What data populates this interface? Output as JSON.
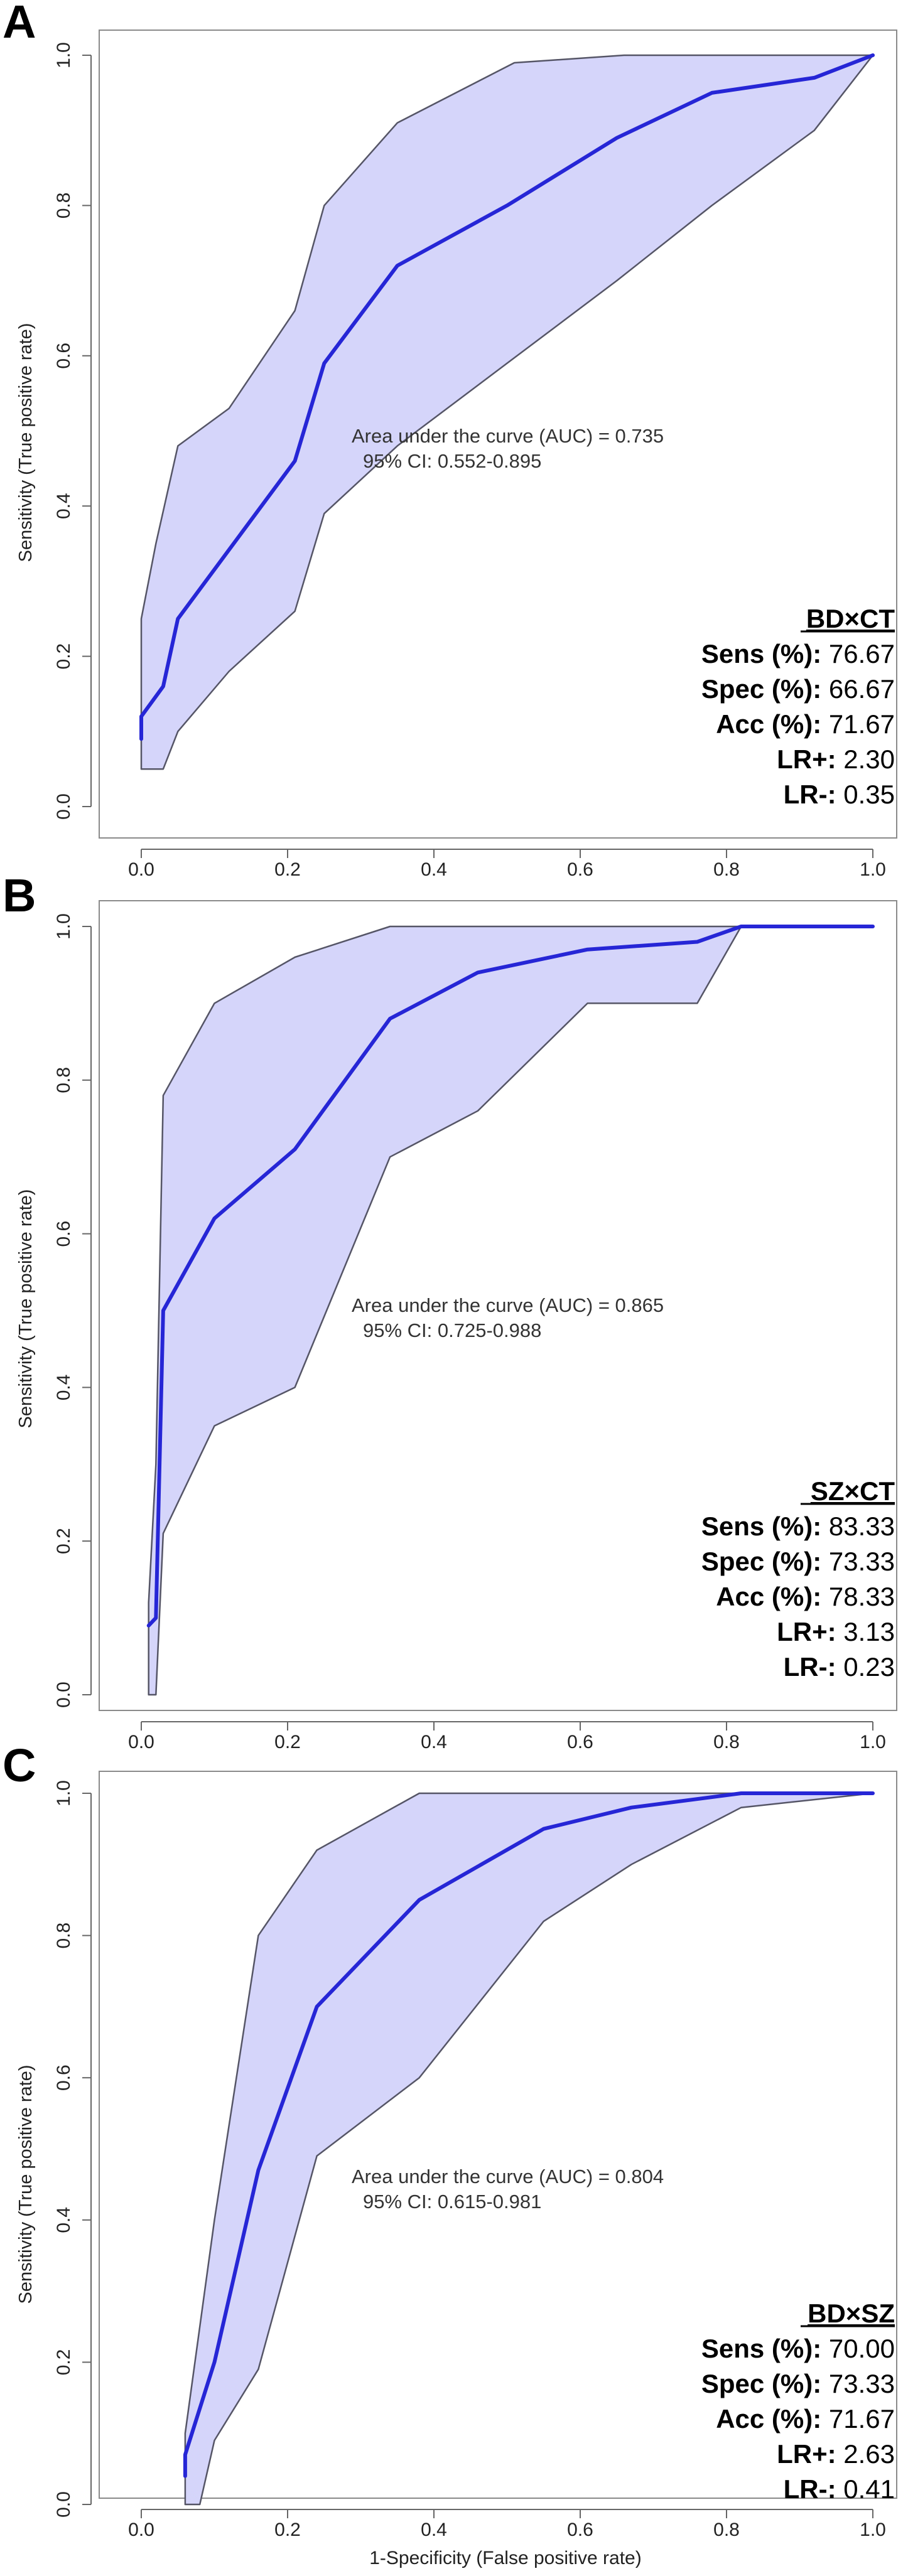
{
  "chart_data": [
    {
      "type": "line",
      "panel_label": "A",
      "ylabel": "Sensitivity (True positive rate)",
      "xlabel": "",
      "xlim": [
        0,
        1
      ],
      "ylim": [
        0,
        1
      ],
      "x_ticks": [
        "0.0",
        "0.2",
        "0.4",
        "0.6",
        "0.8",
        "1.0"
      ],
      "y_ticks": [
        "0.0",
        "0.2",
        "0.4",
        "0.6",
        "0.8",
        "1.0"
      ],
      "auc_text": "Area under the curve (AUC) = 0.735",
      "ci_text": "95% CI: 0.552-0.895",
      "roc_curve": {
        "name": "ROC",
        "x": [
          0.0,
          0.0,
          0.03,
          0.05,
          0.21,
          0.25,
          0.35,
          0.5,
          0.65,
          0.78,
          0.92,
          1.0
        ],
        "y": [
          0.09,
          0.12,
          0.16,
          0.25,
          0.46,
          0.59,
          0.72,
          0.8,
          0.89,
          0.95,
          0.97,
          1.0
        ]
      },
      "ci_upper": {
        "x": [
          0.0,
          0.0,
          0.02,
          0.05,
          0.12,
          0.21,
          0.25,
          0.35,
          0.51,
          0.66,
          1.0
        ],
        "y": [
          0.1,
          0.25,
          0.35,
          0.48,
          0.53,
          0.66,
          0.8,
          0.91,
          0.99,
          1.0,
          1.0
        ]
      },
      "ci_lower": {
        "x": [
          0.0,
          0.03,
          0.05,
          0.12,
          0.21,
          0.25,
          0.35,
          0.5,
          0.65,
          0.78,
          0.92,
          1.0
        ],
        "y": [
          0.05,
          0.05,
          0.1,
          0.18,
          0.26,
          0.39,
          0.48,
          0.59,
          0.7,
          0.8,
          0.9,
          1.0
        ]
      },
      "stats": {
        "title": "BD×CT",
        "rows": [
          {
            "label": "Sens (%)",
            "value": "76.67"
          },
          {
            "label": "Spec (%)",
            "value": "66.67"
          },
          {
            "label": "Acc (%)",
            "value": "71.67"
          },
          {
            "label": "LR+",
            "value": "2.30"
          },
          {
            "label": "LR-",
            "value": "0.35"
          }
        ]
      }
    },
    {
      "type": "line",
      "panel_label": "B",
      "ylabel": "Sensitivity (True positive rate)",
      "xlabel": "",
      "xlim": [
        0,
        1
      ],
      "ylim": [
        0,
        1
      ],
      "x_ticks": [
        "0.0",
        "0.2",
        "0.4",
        "0.6",
        "0.8",
        "1.0"
      ],
      "y_ticks": [
        "0.0",
        "0.2",
        "0.4",
        "0.6",
        "0.8",
        "1.0"
      ],
      "auc_text": "Area under the curve (AUC) = 0.865",
      "ci_text": "95% CI: 0.725-0.988",
      "roc_curve": {
        "name": "ROC",
        "x": [
          0.01,
          0.02,
          0.03,
          0.1,
          0.21,
          0.34,
          0.46,
          0.61,
          0.76,
          0.82,
          0.85,
          1.0
        ],
        "y": [
          0.09,
          0.1,
          0.5,
          0.62,
          0.71,
          0.88,
          0.94,
          0.97,
          0.98,
          1.0,
          1.0,
          1.0
        ]
      },
      "ci_upper": {
        "x": [
          0.01,
          0.02,
          0.03,
          0.1,
          0.21,
          0.34,
          0.46,
          0.61,
          0.76,
          0.82,
          1.0
        ],
        "y": [
          0.12,
          0.3,
          0.78,
          0.9,
          0.96,
          1.0,
          1.0,
          1.0,
          1.0,
          1.0,
          1.0
        ]
      },
      "ci_lower": {
        "x": [
          0.01,
          0.02,
          0.03,
          0.1,
          0.21,
          0.34,
          0.46,
          0.61,
          0.76,
          0.82,
          1.0
        ],
        "y": [
          0.0,
          0.0,
          0.21,
          0.35,
          0.4,
          0.7,
          0.76,
          0.9,
          0.9,
          1.0,
          1.0
        ]
      },
      "stats": {
        "title": "SZ×CT",
        "rows": [
          {
            "label": "Sens (%)",
            "value": "83.33"
          },
          {
            "label": "Spec (%)",
            "value": "73.33"
          },
          {
            "label": "Acc (%)",
            "value": "78.33"
          },
          {
            "label": "LR+",
            "value": "3.13"
          },
          {
            "label": "LR-",
            "value": "0.23"
          }
        ]
      }
    },
    {
      "type": "line",
      "panel_label": "C",
      "ylabel": "Sensitivity (True positive rate)",
      "xlabel": "1-Specificity (False positive rate)",
      "xlim": [
        0,
        1
      ],
      "ylim": [
        0,
        1
      ],
      "x_ticks": [
        "0.0",
        "0.2",
        "0.4",
        "0.6",
        "0.8",
        "1.0"
      ],
      "y_ticks": [
        "0.0",
        "0.2",
        "0.4",
        "0.6",
        "0.8",
        "1.0"
      ],
      "auc_text": "Area under the curve (AUC) = 0.804",
      "ci_text": "95% CI: 0.615-0.981",
      "roc_curve": {
        "name": "ROC",
        "x": [
          0.06,
          0.06,
          0.1,
          0.16,
          0.24,
          0.38,
          0.55,
          0.67,
          0.82,
          0.85,
          1.0
        ],
        "y": [
          0.04,
          0.07,
          0.2,
          0.47,
          0.7,
          0.85,
          0.95,
          0.98,
          1.0,
          1.0,
          1.0
        ]
      },
      "ci_upper": {
        "x": [
          0.06,
          0.06,
          0.08,
          0.1,
          0.16,
          0.24,
          0.38,
          0.55,
          0.67,
          0.82,
          1.0
        ],
        "y": [
          0.08,
          0.1,
          0.25,
          0.4,
          0.8,
          0.92,
          1.0,
          1.0,
          1.0,
          1.0,
          1.0
        ]
      },
      "ci_lower": {
        "x": [
          0.06,
          0.06,
          0.08,
          0.1,
          0.16,
          0.24,
          0.38,
          0.55,
          0.67,
          0.82,
          1.0
        ],
        "y": [
          0.1,
          0.0,
          0.0,
          0.09,
          0.19,
          0.49,
          0.6,
          0.82,
          0.9,
          0.98,
          1.0
        ]
      },
      "stats": {
        "title": "BD×SZ",
        "rows": [
          {
            "label": "Sens (%)",
            "value": "70.00"
          },
          {
            "label": "Spec (%)",
            "value": "73.33"
          },
          {
            "label": "Acc (%)",
            "value": "71.67"
          },
          {
            "label": "LR+",
            "value": "2.63"
          },
          {
            "label": "LR-",
            "value": "0.41"
          }
        ]
      }
    }
  ]
}
